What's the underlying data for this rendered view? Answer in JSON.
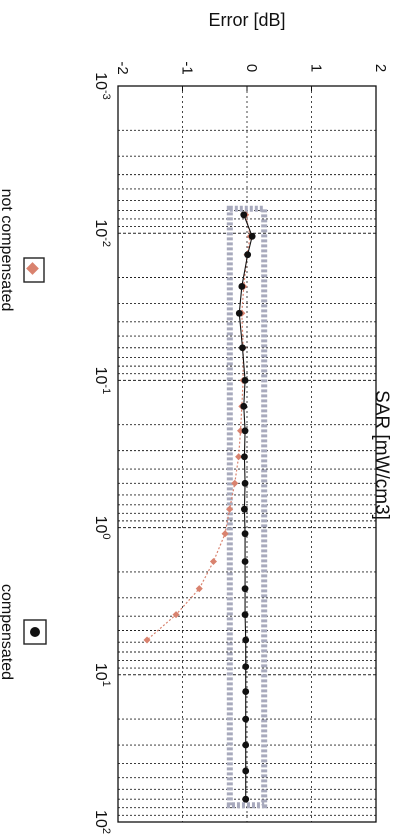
{
  "chart_data": {
    "type": "scatter",
    "title": "",
    "ylabel": "Error [dB]",
    "xlabel": "SAR [mW/cm3]",
    "x_scale": "log",
    "xlim": [
      0.001,
      100
    ],
    "ylim": [
      -2,
      2
    ],
    "y_ticks": [
      -2,
      -1,
      0,
      1,
      2
    ],
    "x_ticks": [
      {
        "base": "10",
        "exp": "-3",
        "value": 0.001
      },
      {
        "base": "10",
        "exp": "-2",
        "value": 0.01
      },
      {
        "base": "10",
        "exp": "-1",
        "value": 0.1
      },
      {
        "base": "10",
        "exp": "0",
        "value": 1
      },
      {
        "base": "10",
        "exp": "1",
        "value": 10
      },
      {
        "base": "10",
        "exp": "2",
        "value": 100
      }
    ],
    "grid": true,
    "rotation": "rotated 90 degrees clockwise",
    "uncertainty_band": [
      -0.22,
      0.22
    ],
    "series": [
      {
        "name": "not compensated",
        "marker": "diamond",
        "color": "#d9826e",
        "x": [
          0.0075,
          0.0105,
          0.014,
          0.023,
          0.035,
          0.06,
          0.1,
          0.15,
          0.22,
          0.33,
          0.5,
          0.75,
          1.1,
          1.7,
          2.6,
          3.9,
          5.8
        ],
        "y": [
          -0.02,
          0.05,
          0.0,
          -0.05,
          -0.08,
          -0.06,
          -0.06,
          -0.08,
          -0.1,
          -0.13,
          -0.19,
          -0.27,
          -0.34,
          -0.52,
          -0.74,
          -1.1,
          -1.55
        ]
      },
      {
        "name": "compensated",
        "marker": "circle",
        "color": "#111111",
        "x": [
          0.0075,
          0.0105,
          0.014,
          0.023,
          0.035,
          0.06,
          0.1,
          0.15,
          0.22,
          0.33,
          0.5,
          0.75,
          1.1,
          1.7,
          2.6,
          3.9,
          5.8,
          8.8,
          13,
          20,
          30,
          45,
          70
        ],
        "y": [
          -0.05,
          0.08,
          0.01,
          -0.08,
          -0.12,
          -0.07,
          -0.03,
          -0.05,
          -0.03,
          -0.04,
          -0.03,
          -0.04,
          -0.03,
          -0.03,
          -0.03,
          -0.03,
          -0.02,
          -0.02,
          -0.02,
          -0.02,
          -0.02,
          -0.02,
          -0.02
        ]
      }
    ],
    "legend": "bottom-left of rotated page, two separate boxes"
  }
}
